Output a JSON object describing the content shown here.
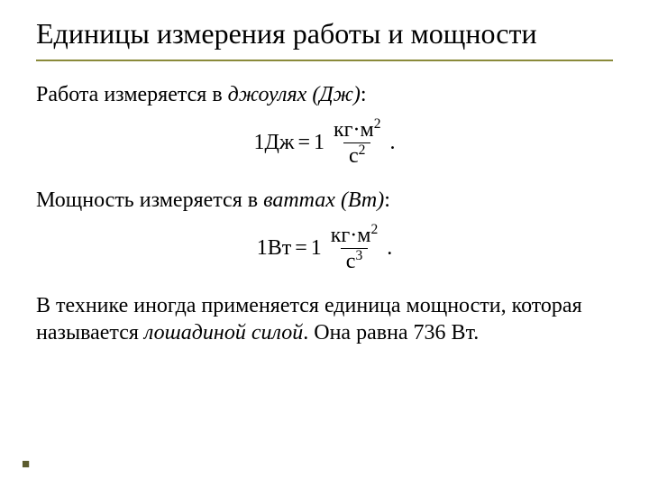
{
  "slide": {
    "title": "Единицы измерения работы и мощности",
    "rule_color": "#8a8a3a",
    "text1_plain": "Работа измеряется в ",
    "text1_italic": "джоулях (Дж)",
    "text1_tail": ":",
    "formula1": {
      "lhs": "1Дж",
      "eq": "=",
      "one": "1",
      "num_a": "кг",
      "num_dot": "·",
      "num_b": "м",
      "num_exp": "2",
      "den_a": "с",
      "den_exp": "2",
      "tail": "."
    },
    "text2_plain": "Мощность измеряется в ",
    "text2_italic": "ваттах (Вт)",
    "text2_tail": ":",
    "formula2": {
      "lhs": "1Вт",
      "eq": "=",
      "one": "1",
      "num_a": "кг",
      "num_dot": "·",
      "num_b": "м",
      "num_exp": "2",
      "den_a": "с",
      "den_exp": "3",
      "tail": "."
    },
    "text3_a": "В технике иногда применяется единица мощности, которая называется ",
    "text3_italic": "лошадиной силой",
    "text3_b": ". Она равна 736 Вт.",
    "bullet": "■",
    "bullet_color": "#5c5c2e"
  }
}
